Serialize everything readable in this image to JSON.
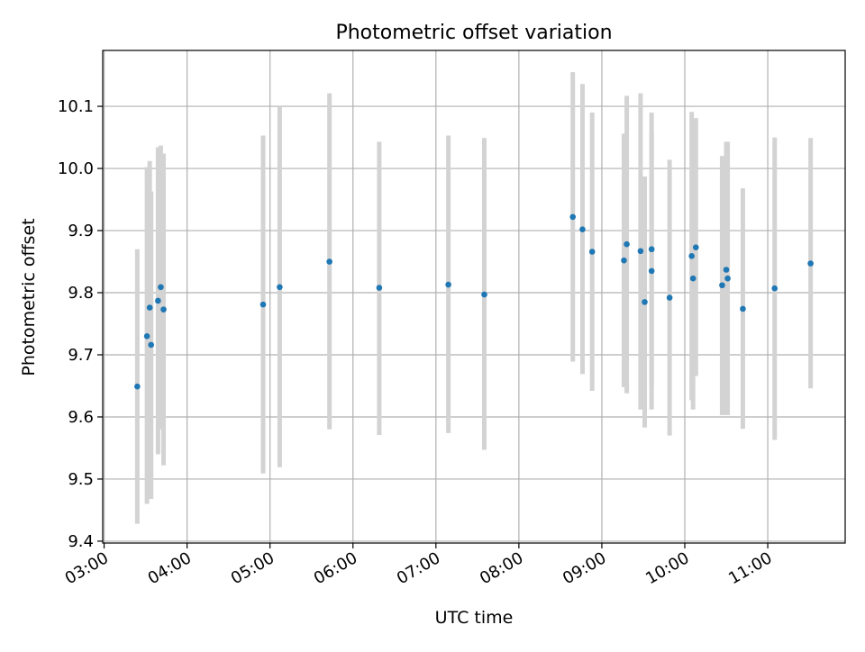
{
  "chart_data": {
    "type": "scatter",
    "title": "Photometric offset variation",
    "xlabel": "UTC time",
    "ylabel": "Photometric offset",
    "x_axis_kind": "time",
    "xlim": [
      "02:59",
      "11:56"
    ],
    "ylim": [
      9.397,
      10.19
    ],
    "x_ticks": [
      "03:00",
      "04:00",
      "05:00",
      "06:00",
      "07:00",
      "08:00",
      "09:00",
      "10:00",
      "11:00"
    ],
    "y_ticks": [
      9.4,
      9.5,
      9.6,
      9.7,
      9.8,
      9.9,
      10.0,
      10.1
    ],
    "grid": true,
    "legend": "none",
    "colors": {
      "point": "#1f77b4",
      "errorbar": "#d3d3d3",
      "grid": "#b0b0b0"
    },
    "points": [
      {
        "time": "03:24",
        "y": 9.649,
        "ylow": 9.428,
        "yhigh": 9.87
      },
      {
        "time": "03:31",
        "y": 9.73,
        "ylow": 9.46,
        "yhigh": 10.002
      },
      {
        "time": "03:33",
        "y": 9.776,
        "ylow": 9.54,
        "yhigh": 10.012
      },
      {
        "time": "03:34",
        "y": 9.716,
        "ylow": 9.468,
        "yhigh": 9.963
      },
      {
        "time": "03:39",
        "y": 9.787,
        "ylow": 9.54,
        "yhigh": 10.034
      },
      {
        "time": "03:41",
        "y": 9.809,
        "ylow": 9.58,
        "yhigh": 10.037
      },
      {
        "time": "03:43",
        "y": 9.773,
        "ylow": 9.522,
        "yhigh": 10.024
      },
      {
        "time": "04:55",
        "y": 9.781,
        "ylow": 9.509,
        "yhigh": 10.053
      },
      {
        "time": "05:07",
        "y": 9.809,
        "ylow": 9.519,
        "yhigh": 10.1
      },
      {
        "time": "05:43",
        "y": 9.85,
        "ylow": 9.58,
        "yhigh": 10.121
      },
      {
        "time": "06:19",
        "y": 9.808,
        "ylow": 9.571,
        "yhigh": 10.043
      },
      {
        "time": "07:09",
        "y": 9.813,
        "ylow": 9.574,
        "yhigh": 10.053
      },
      {
        "time": "07:35",
        "y": 9.797,
        "ylow": 9.547,
        "yhigh": 10.049
      },
      {
        "time": "08:39",
        "y": 9.922,
        "ylow": 9.689,
        "yhigh": 10.155
      },
      {
        "time": "08:46",
        "y": 9.902,
        "ylow": 9.669,
        "yhigh": 10.136
      },
      {
        "time": "08:53",
        "y": 9.866,
        "ylow": 9.642,
        "yhigh": 10.09
      },
      {
        "time": "09:16",
        "y": 9.852,
        "ylow": 9.648,
        "yhigh": 10.056
      },
      {
        "time": "09:18",
        "y": 9.878,
        "ylow": 9.638,
        "yhigh": 10.117
      },
      {
        "time": "09:28",
        "y": 9.867,
        "ylow": 9.612,
        "yhigh": 10.121
      },
      {
        "time": "09:31",
        "y": 9.785,
        "ylow": 9.583,
        "yhigh": 9.987
      },
      {
        "time": "09:36",
        "y": 9.87,
        "ylow": 9.65,
        "yhigh": 10.09
      },
      {
        "time": "09:36",
        "y": 9.835,
        "ylow": 9.612,
        "yhigh": 10.06
      },
      {
        "time": "09:49",
        "y": 9.792,
        "ylow": 9.57,
        "yhigh": 10.014
      },
      {
        "time": "10:05",
        "y": 9.859,
        "ylow": 9.627,
        "yhigh": 10.091
      },
      {
        "time": "10:06",
        "y": 9.823,
        "ylow": 9.612,
        "yhigh": 10.034
      },
      {
        "time": "10:08",
        "y": 9.873,
        "ylow": 9.666,
        "yhigh": 10.081
      },
      {
        "time": "10:27",
        "y": 9.812,
        "ylow": 9.603,
        "yhigh": 10.02
      },
      {
        "time": "10:30",
        "y": 9.837,
        "ylow": 9.603,
        "yhigh": 10.043
      },
      {
        "time": "10:31",
        "y": 9.823,
        "ylow": 9.603,
        "yhigh": 10.043
      },
      {
        "time": "10:42",
        "y": 9.774,
        "ylow": 9.581,
        "yhigh": 9.968
      },
      {
        "time": "11:05",
        "y": 9.807,
        "ylow": 9.563,
        "yhigh": 10.05
      },
      {
        "time": "11:31",
        "y": 9.847,
        "ylow": 9.646,
        "yhigh": 10.049
      }
    ]
  }
}
